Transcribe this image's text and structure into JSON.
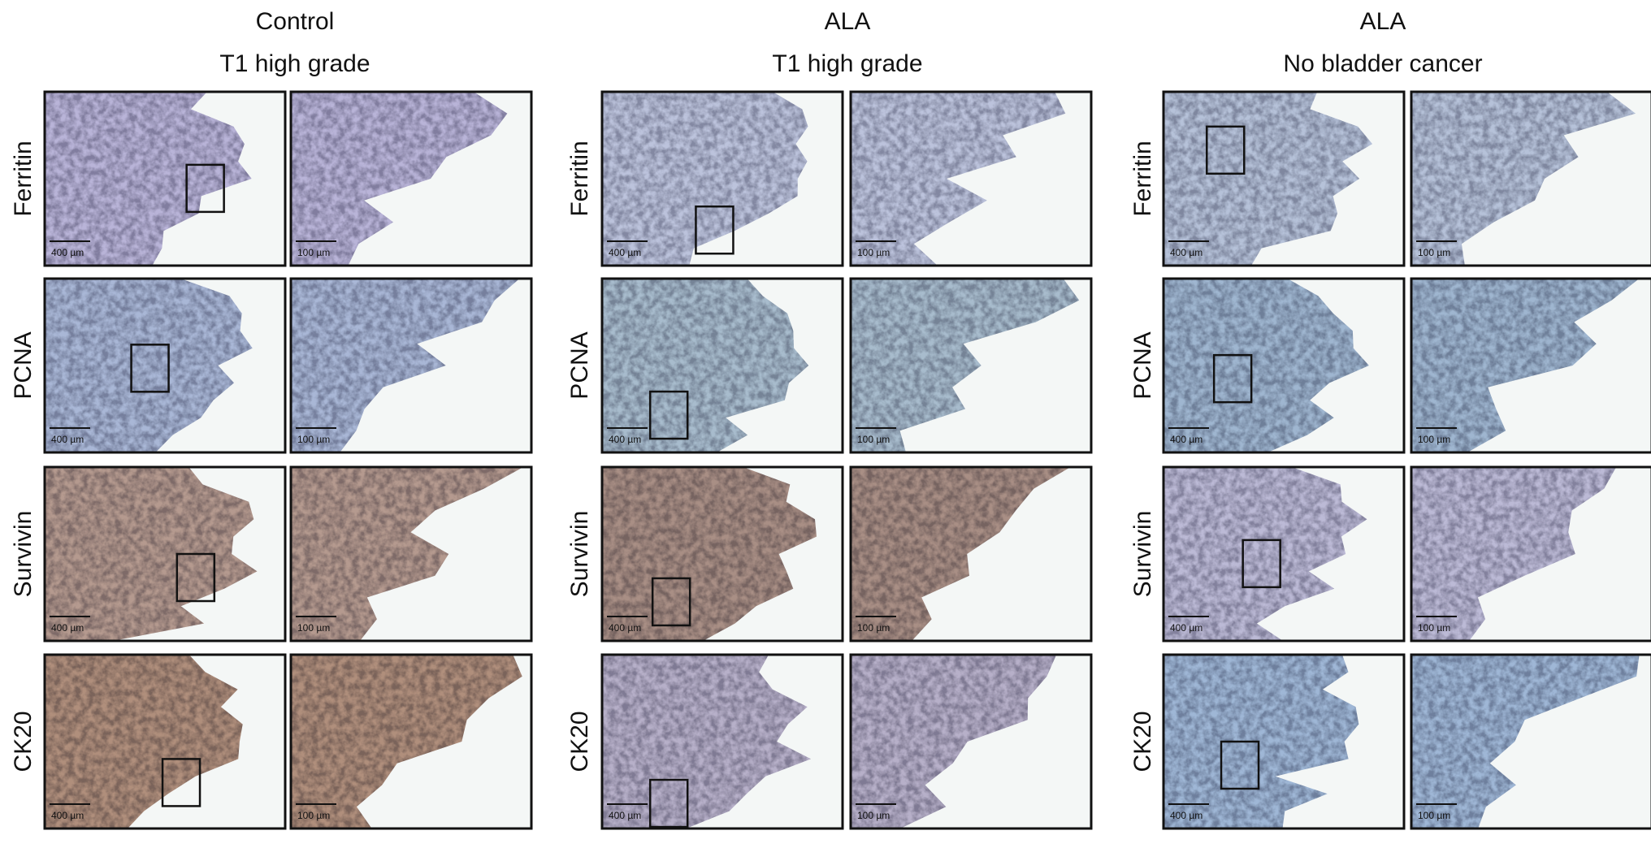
{
  "panels": [
    {
      "title": "Control",
      "subtitle": "T1 high grade",
      "rows": [
        {
          "label": "Ferritin",
          "scale_low": "400 µm",
          "scale_high": "100 µm"
        },
        {
          "label": "PCNA",
          "scale_low": "400 µm",
          "scale_high": "100 µm"
        },
        {
          "label": "Survivin",
          "scale_low": "400 µm",
          "scale_high": "100 µm"
        },
        {
          "label": "CK20",
          "scale_low": "400 µm",
          "scale_high": "100 µm"
        }
      ]
    },
    {
      "title": "ALA",
      "subtitle": "T1 high grade",
      "rows": [
        {
          "label": "Ferritin",
          "scale_low": "400 µm",
          "scale_high": "100 µm"
        },
        {
          "label": "PCNA",
          "scale_low": "400 µm",
          "scale_high": "100 µm"
        },
        {
          "label": "Survivin",
          "scale_low": "400 µm",
          "scale_high": "100 µm"
        },
        {
          "label": "CK20",
          "scale_low": "400 µm",
          "scale_high": "100 µm"
        }
      ]
    },
    {
      "title": "ALA",
      "subtitle": "No bladder cancer",
      "rows": [
        {
          "label": "Ferritin",
          "scale_low": "400 µm",
          "scale_high": "100 µm"
        },
        {
          "label": "PCNA",
          "scale_low": "400 µm",
          "scale_high": "100 µm"
        },
        {
          "label": "Survivin",
          "scale_low": "400 µm",
          "scale_high": "100 µm"
        },
        {
          "label": "CK20",
          "scale_low": "400 µm",
          "scale_high": "100 µm"
        }
      ]
    }
  ]
}
